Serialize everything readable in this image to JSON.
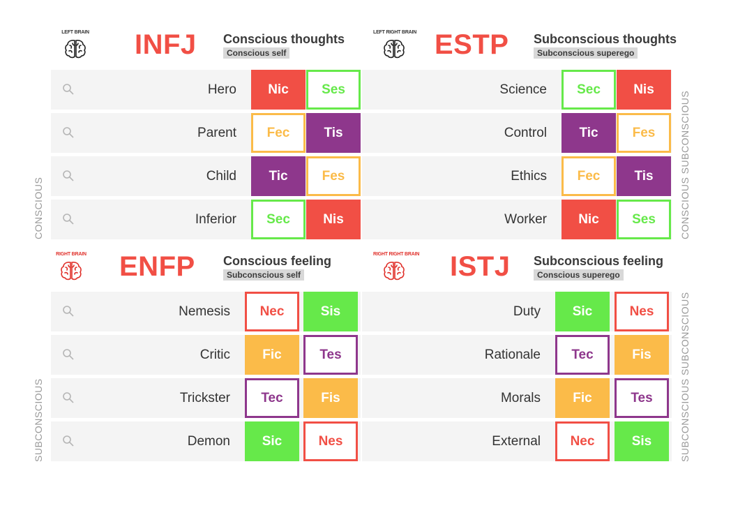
{
  "colors": {
    "red": "#f14f45",
    "green": "#66e94a",
    "purple": "#8e378c",
    "orange": "#fbbb49",
    "gray_text": "#9a9a9a"
  },
  "side_labels": {
    "left_top": "CONSCIOUS",
    "left_bottom": "SUBCONSCIOUS",
    "right_top": "CONSCIOUS SUBCONSCIOUS",
    "right_bottom": "SUBCONSCIOUS SUBCONSCIOUS"
  },
  "quadrants": [
    {
      "brain_label": "LEFT BRAIN",
      "brain_color": "#222222",
      "type": "INFJ",
      "title": "Conscious thoughts",
      "subtitle": "Conscious self",
      "rows": [
        {
          "label": "Hero",
          "a": {
            "text": "Nic",
            "style": "filled",
            "color": "red"
          },
          "b": {
            "text": "Ses",
            "style": "outline",
            "color": "green"
          }
        },
        {
          "label": "Parent",
          "a": {
            "text": "Fec",
            "style": "outline",
            "color": "orange"
          },
          "b": {
            "text": "Tis",
            "style": "filled",
            "color": "purple"
          }
        },
        {
          "label": "Child",
          "a": {
            "text": "Tic",
            "style": "filled",
            "color": "purple"
          },
          "b": {
            "text": "Fes",
            "style": "outline",
            "color": "orange"
          }
        },
        {
          "label": "Inferior",
          "a": {
            "text": "Sec",
            "style": "outline",
            "color": "green"
          },
          "b": {
            "text": "Nis",
            "style": "filled",
            "color": "red"
          }
        }
      ]
    },
    {
      "brain_label": "LEFT RIGHT BRAIN",
      "brain_color": "#222222",
      "type": "ESTP",
      "title": "Subconscious thoughts",
      "subtitle": "Subconscious superego",
      "rows": [
        {
          "label": "Science",
          "a": {
            "text": "Sec",
            "style": "outline",
            "color": "green"
          },
          "b": {
            "text": "Nis",
            "style": "filled",
            "color": "red"
          }
        },
        {
          "label": "Control",
          "a": {
            "text": "Tic",
            "style": "filled",
            "color": "purple"
          },
          "b": {
            "text": "Fes",
            "style": "outline",
            "color": "orange"
          }
        },
        {
          "label": "Ethics",
          "a": {
            "text": "Fec",
            "style": "outline",
            "color": "orange"
          },
          "b": {
            "text": "Tis",
            "style": "filled",
            "color": "purple"
          }
        },
        {
          "label": "Worker",
          "a": {
            "text": "Nic",
            "style": "filled",
            "color": "red"
          },
          "b": {
            "text": "Ses",
            "style": "outline",
            "color": "green"
          }
        }
      ]
    },
    {
      "brain_label": "RIGHT BRAIN",
      "brain_color": "#e0302a",
      "type": "ENFP",
      "title": "Conscious feeling",
      "subtitle": "Subconscious self",
      "rows": [
        {
          "label": "Nemesis",
          "a": {
            "text": "Nec",
            "style": "outline",
            "color": "red"
          },
          "b": {
            "text": "Sis",
            "style": "filled",
            "color": "green"
          }
        },
        {
          "label": "Critic",
          "a": {
            "text": "Fic",
            "style": "filled",
            "color": "orange"
          },
          "b": {
            "text": "Tes",
            "style": "outline",
            "color": "purple"
          }
        },
        {
          "label": "Trickster",
          "a": {
            "text": "Tec",
            "style": "outline",
            "color": "purple"
          },
          "b": {
            "text": "Fis",
            "style": "filled",
            "color": "orange"
          }
        },
        {
          "label": "Demon",
          "a": {
            "text": "Sic",
            "style": "filled",
            "color": "green"
          },
          "b": {
            "text": "Nes",
            "style": "outline",
            "color": "red"
          }
        }
      ]
    },
    {
      "brain_label": "RIGHT RIGHT BRAIN",
      "brain_color": "#e0302a",
      "type": "ISTJ",
      "title": "Subconscious feeling",
      "subtitle": "Conscious superego",
      "rows": [
        {
          "label": "Duty",
          "a": {
            "text": "Sic",
            "style": "filled",
            "color": "green"
          },
          "b": {
            "text": "Nes",
            "style": "outline",
            "color": "red"
          }
        },
        {
          "label": "Rationale",
          "a": {
            "text": "Tec",
            "style": "outline",
            "color": "purple"
          },
          "b": {
            "text": "Fis",
            "style": "filled",
            "color": "orange"
          }
        },
        {
          "label": "Morals",
          "a": {
            "text": "Fic",
            "style": "filled",
            "color": "orange"
          },
          "b": {
            "text": "Tes",
            "style": "outline",
            "color": "purple"
          }
        },
        {
          "label": "External",
          "a": {
            "text": "Nec",
            "style": "outline",
            "color": "red"
          },
          "b": {
            "text": "Sis",
            "style": "filled",
            "color": "green"
          }
        }
      ]
    }
  ]
}
